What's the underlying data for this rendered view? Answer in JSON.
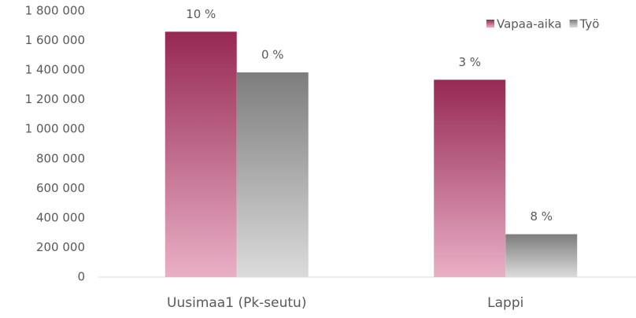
{
  "chart_data": {
    "type": "bar",
    "categories": [
      "Uusimaa1 (Pk-seutu)",
      "Lappi"
    ],
    "series": [
      {
        "name": "Vapaa-aika",
        "color": "#c8366e",
        "values": [
          1660000,
          1335000
        ],
        "annotations": [
          "10 %",
          "3 %"
        ]
      },
      {
        "name": "Työ",
        "color": "#a6a6a6",
        "values": [
          1385000,
          290000
        ],
        "annotations": [
          "0 %",
          "8 %"
        ]
      }
    ],
    "ylim": [
      0,
      1800000
    ],
    "yticks": [
      0,
      {
        "value": 200000,
        "label": "200 000"
      },
      {
        "value": 400000,
        "label": "400 000"
      },
      {
        "value": 600000,
        "label": "600 000"
      },
      {
        "value": 800000,
        "label": "800 000"
      },
      {
        "value": 1000000,
        "label": "1 000 000"
      },
      {
        "value": 1200000,
        "label": "1 200 000"
      },
      {
        "value": 1400000,
        "label": "1 400 000"
      },
      {
        "value": 1600000,
        "label": "1 600 000"
      },
      {
        "value": 1800000,
        "label": "1 800 000"
      }
    ],
    "grid": false,
    "legend": "top-right"
  }
}
